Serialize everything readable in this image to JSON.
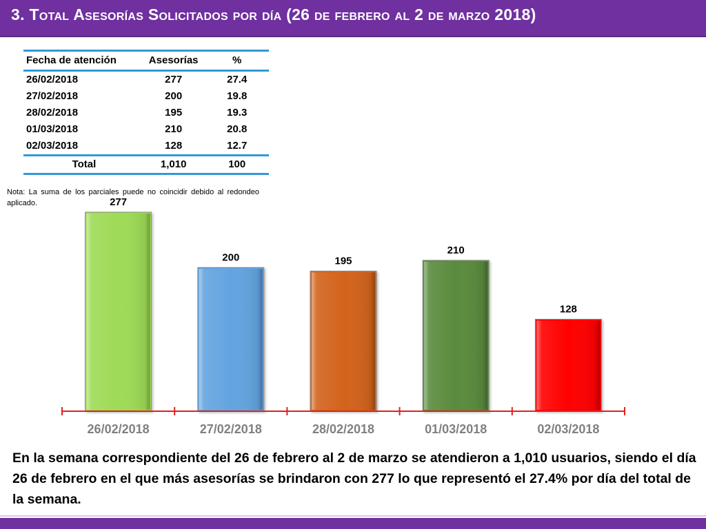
{
  "title": "3.  Total Asesorías Solicitados por día  (26 de febrero al 2 de marzo 2018)",
  "table": {
    "headers": [
      "Fecha de atención",
      "Asesorías",
      "%"
    ],
    "rows": [
      [
        "26/02/2018",
        "277",
        "27.4"
      ],
      [
        "27/02/2018",
        "200",
        "19.8"
      ],
      [
        "28/02/2018",
        "195",
        "19.3"
      ],
      [
        "01/03/2018",
        "210",
        "20.8"
      ],
      [
        "02/03/2018",
        "128",
        "12.7"
      ]
    ],
    "total": [
      "Total",
      "1,010",
      "100"
    ]
  },
  "note": "Nota: La suma de los parciales puede no coincidir debido al redondeo aplicado.",
  "chart_data": {
    "type": "bar",
    "categories": [
      "26/02/2018",
      "27/02/2018",
      "28/02/2018",
      "01/03/2018",
      "02/03/2018"
    ],
    "values": [
      277,
      200,
      195,
      210,
      128
    ],
    "data_labels": [
      "277",
      "200",
      "195",
      "210",
      "128"
    ],
    "colors": [
      "#9edb57",
      "#63a4e0",
      "#d2641e",
      "#5a8b3e",
      "#ff0000"
    ],
    "axis_color": "#e02020",
    "tick_label_color": "#808080",
    "ylim": [
      0,
      277
    ],
    "grid": false,
    "legend": "none"
  },
  "summary": "En la semana correspondiente del 26 de febrero al 2 de marzo se atendieron a 1,010 usuarios, siendo el día 26 de febrero en el que más asesorías se brindaron con 277 lo que representó el 27.4% por día del total de la semana.",
  "colors": {
    "title_bar": "#7030a0",
    "title_text": "#ffffff",
    "table_rule": "#2e9ad8"
  }
}
